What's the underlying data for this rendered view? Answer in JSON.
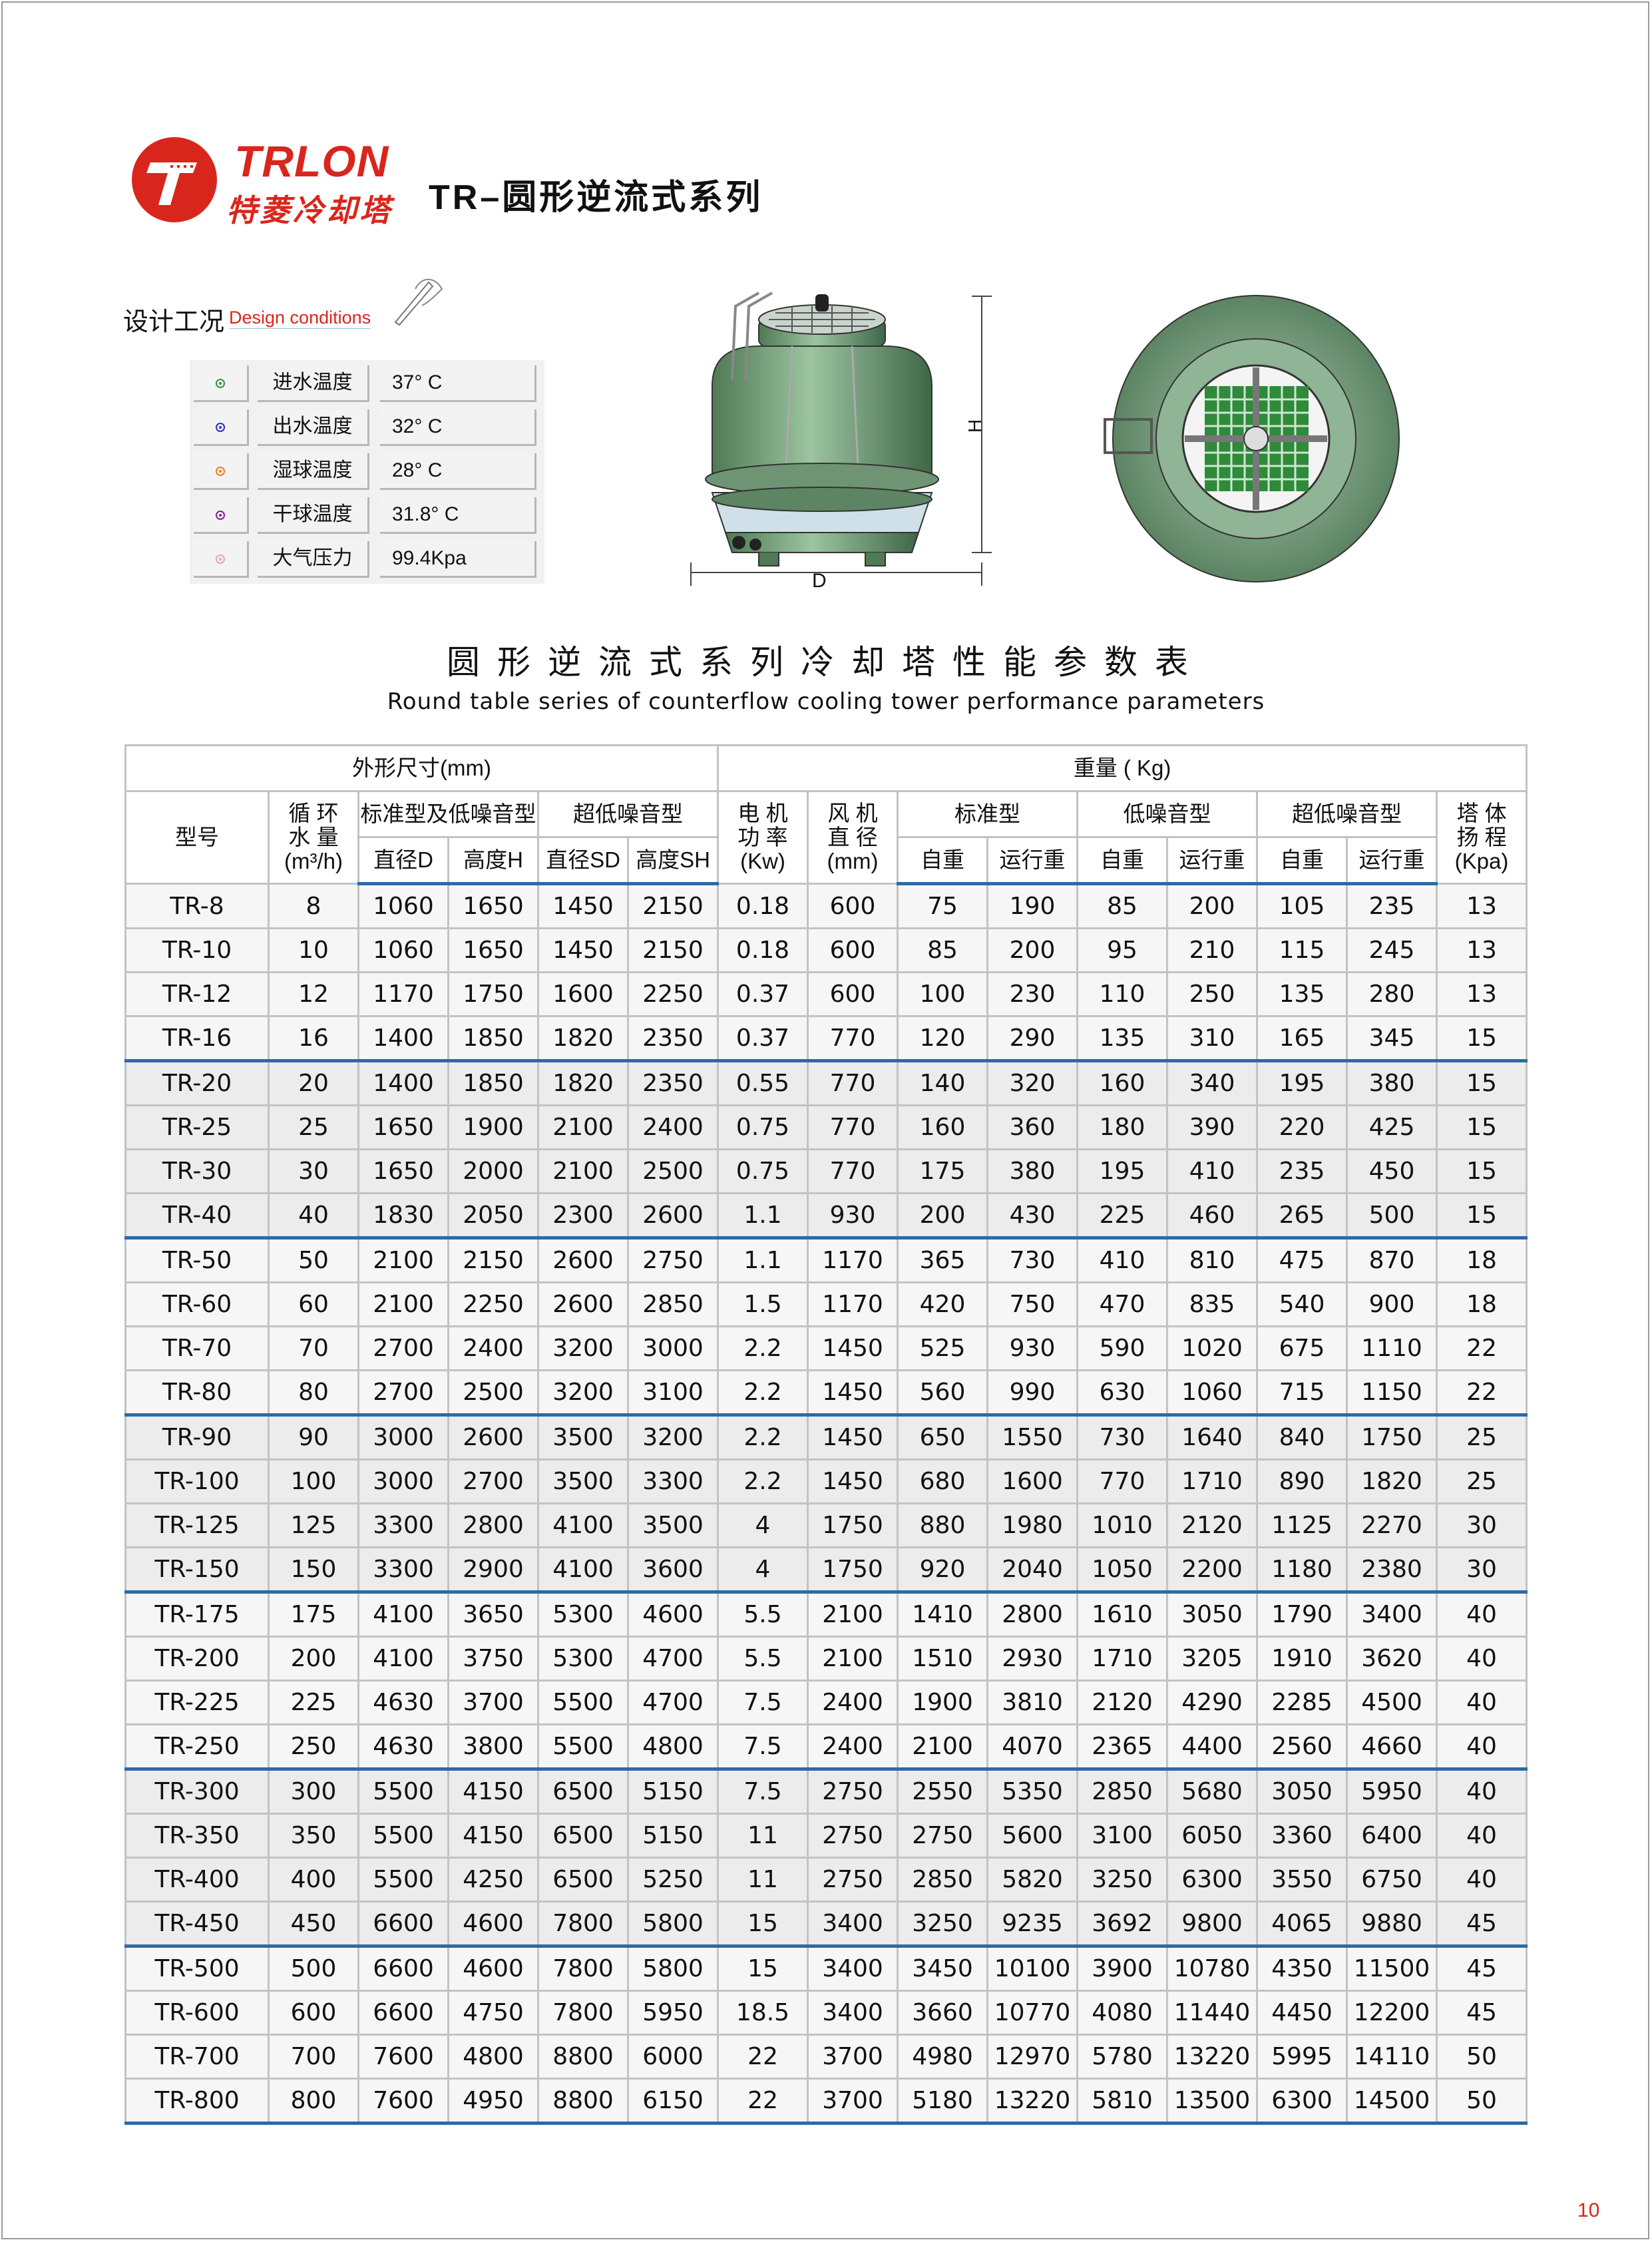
{
  "brand": {
    "name_en": "TRLON",
    "name_cn": "特菱冷却塔",
    "color": "#d9261c"
  },
  "series_title": "TR–圆形逆流式系列",
  "design_conditions": {
    "title_cn": "设计工况",
    "title_en": "Design conditions",
    "items": [
      {
        "label": "进水温度",
        "value": "37° C",
        "color": "#2e9a3a"
      },
      {
        "label": "出水温度",
        "value": "32° C",
        "color": "#2b2bd6"
      },
      {
        "label": "湿球温度",
        "value": "28° C",
        "color": "#f07a1a"
      },
      {
        "label": "干球温度",
        "value": "31.8° C",
        "color": "#8a1f9a"
      },
      {
        "label": "大气压力",
        "value": "99.4Kpa",
        "color": "#f29ac0"
      }
    ]
  },
  "drawing_labels": {
    "height": "H",
    "diameter": "D"
  },
  "table": {
    "title_cn": "圆形逆流式系列冷却塔性能参数表",
    "title_en": "Round table series of counterflow cooling tower performance parameters",
    "header": {
      "dimensions": "外形尺寸(mm)",
      "weight": "重量 ( Kg)",
      "model": "型号",
      "flow": [
        "循 环",
        "水 量",
        "(m³/h)"
      ],
      "std_low": "标准型及低噪音型",
      "ultra_low": "超低噪音型",
      "motor": [
        "电 机",
        "功 率",
        "(Kw)"
      ],
      "fan": [
        "风 机",
        "直 径",
        "(mm)"
      ],
      "standard": "标准型",
      "low_noise": "低噪音型",
      "ultra_low_w": "超低噪音型",
      "head": [
        "塔 体",
        "扬 程",
        "(Kpa)"
      ],
      "dia_d": "直径D",
      "height_h": "高度H",
      "dia_sd": "直径SD",
      "height_sh": "高度SH",
      "self_weight": "自重",
      "op_weight": "运行重"
    },
    "rows": [
      [
        "TR-8",
        "8",
        "1060",
        "1650",
        "1450",
        "2150",
        "0.18",
        "600",
        "75",
        "190",
        "85",
        "200",
        "105",
        "235",
        "13"
      ],
      [
        "TR-10",
        "10",
        "1060",
        "1650",
        "1450",
        "2150",
        "0.18",
        "600",
        "85",
        "200",
        "95",
        "210",
        "115",
        "245",
        "13"
      ],
      [
        "TR-12",
        "12",
        "1170",
        "1750",
        "1600",
        "2250",
        "0.37",
        "600",
        "100",
        "230",
        "110",
        "250",
        "135",
        "280",
        "13"
      ],
      [
        "TR-16",
        "16",
        "1400",
        "1850",
        "1820",
        "2350",
        "0.37",
        "770",
        "120",
        "290",
        "135",
        "310",
        "165",
        "345",
        "15"
      ],
      [
        "TR-20",
        "20",
        "1400",
        "1850",
        "1820",
        "2350",
        "0.55",
        "770",
        "140",
        "320",
        "160",
        "340",
        "195",
        "380",
        "15"
      ],
      [
        "TR-25",
        "25",
        "1650",
        "1900",
        "2100",
        "2400",
        "0.75",
        "770",
        "160",
        "360",
        "180",
        "390",
        "220",
        "425",
        "15"
      ],
      [
        "TR-30",
        "30",
        "1650",
        "2000",
        "2100",
        "2500",
        "0.75",
        "770",
        "175",
        "380",
        "195",
        "410",
        "235",
        "450",
        "15"
      ],
      [
        "TR-40",
        "40",
        "1830",
        "2050",
        "2300",
        "2600",
        "1.1",
        "930",
        "200",
        "430",
        "225",
        "460",
        "265",
        "500",
        "15"
      ],
      [
        "TR-50",
        "50",
        "2100",
        "2150",
        "2600",
        "2750",
        "1.1",
        "1170",
        "365",
        "730",
        "410",
        "810",
        "475",
        "870",
        "18"
      ],
      [
        "TR-60",
        "60",
        "2100",
        "2250",
        "2600",
        "2850",
        "1.5",
        "1170",
        "420",
        "750",
        "470",
        "835",
        "540",
        "900",
        "18"
      ],
      [
        "TR-70",
        "70",
        "2700",
        "2400",
        "3200",
        "3000",
        "2.2",
        "1450",
        "525",
        "930",
        "590",
        "1020",
        "675",
        "1110",
        "22"
      ],
      [
        "TR-80",
        "80",
        "2700",
        "2500",
        "3200",
        "3100",
        "2.2",
        "1450",
        "560",
        "990",
        "630",
        "1060",
        "715",
        "1150",
        "22"
      ],
      [
        "TR-90",
        "90",
        "3000",
        "2600",
        "3500",
        "3200",
        "2.2",
        "1450",
        "650",
        "1550",
        "730",
        "1640",
        "840",
        "1750",
        "25"
      ],
      [
        "TR-100",
        "100",
        "3000",
        "2700",
        "3500",
        "3300",
        "2.2",
        "1450",
        "680",
        "1600",
        "770",
        "1710",
        "890",
        "1820",
        "25"
      ],
      [
        "TR-125",
        "125",
        "3300",
        "2800",
        "4100",
        "3500",
        "4",
        "1750",
        "880",
        "1980",
        "1010",
        "2120",
        "1125",
        "2270",
        "30"
      ],
      [
        "TR-150",
        "150",
        "3300",
        "2900",
        "4100",
        "3600",
        "4",
        "1750",
        "920",
        "2040",
        "1050",
        "2200",
        "1180",
        "2380",
        "30"
      ],
      [
        "TR-175",
        "175",
        "4100",
        "3650",
        "5300",
        "4600",
        "5.5",
        "2100",
        "1410",
        "2800",
        "1610",
        "3050",
        "1790",
        "3400",
        "40"
      ],
      [
        "TR-200",
        "200",
        "4100",
        "3750",
        "5300",
        "4700",
        "5.5",
        "2100",
        "1510",
        "2930",
        "1710",
        "3205",
        "1910",
        "3620",
        "40"
      ],
      [
        "TR-225",
        "225",
        "4630",
        "3700",
        "5500",
        "4700",
        "7.5",
        "2400",
        "1900",
        "3810",
        "2120",
        "4290",
        "2285",
        "4500",
        "40"
      ],
      [
        "TR-250",
        "250",
        "4630",
        "3800",
        "5500",
        "4800",
        "7.5",
        "2400",
        "2100",
        "4070",
        "2365",
        "4400",
        "2560",
        "4660",
        "40"
      ],
      [
        "TR-300",
        "300",
        "5500",
        "4150",
        "6500",
        "5150",
        "7.5",
        "2750",
        "2550",
        "5350",
        "2850",
        "5680",
        "3050",
        "5950",
        "40"
      ],
      [
        "TR-350",
        "350",
        "5500",
        "4150",
        "6500",
        "5150",
        "11",
        "2750",
        "2750",
        "5600",
        "3100",
        "6050",
        "3360",
        "6400",
        "40"
      ],
      [
        "TR-400",
        "400",
        "5500",
        "4250",
        "6500",
        "5250",
        "11",
        "2750",
        "2850",
        "5820",
        "3250",
        "6300",
        "3550",
        "6750",
        "40"
      ],
      [
        "TR-450",
        "450",
        "6600",
        "4600",
        "7800",
        "5800",
        "15",
        "3400",
        "3250",
        "9235",
        "3692",
        "9800",
        "4065",
        "9880",
        "45"
      ],
      [
        "TR-500",
        "500",
        "6600",
        "4600",
        "7800",
        "5800",
        "15",
        "3400",
        "3450",
        "10100",
        "3900",
        "10780",
        "4350",
        "11500",
        "45"
      ],
      [
        "TR-600",
        "600",
        "6600",
        "4750",
        "7800",
        "5950",
        "18.5",
        "3400",
        "3660",
        "10770",
        "4080",
        "11440",
        "4450",
        "12200",
        "45"
      ],
      [
        "TR-700",
        "700",
        "7600",
        "4800",
        "8800",
        "6000",
        "22",
        "3700",
        "4980",
        "12970",
        "5780",
        "13220",
        "5995",
        "14110",
        "50"
      ],
      [
        "TR-800",
        "800",
        "7600",
        "4950",
        "8800",
        "6150",
        "22",
        "3700",
        "5180",
        "13220",
        "5810",
        "13500",
        "6300",
        "14500",
        "50"
      ]
    ]
  },
  "page_number": "10"
}
